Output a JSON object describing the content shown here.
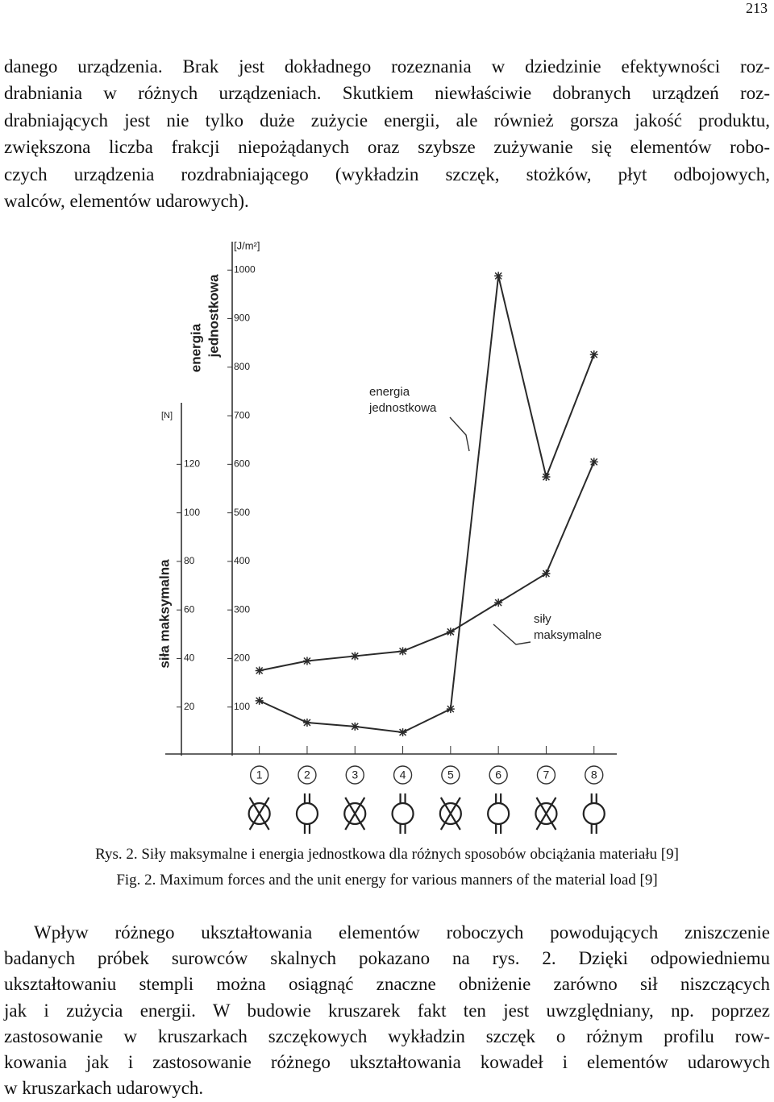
{
  "page_number": "213",
  "paragraph_1": [
    "danego urządzenia. Brak jest dokładnego rozeznania w dziedzinie efektywności roz-",
    "drabniania w różnych urządzeniach. Skutkiem niewłaściwie dobranych urządzeń roz-",
    "drabniających jest nie tylko duże zużycie energii, ale również gorsza jakość produktu,",
    "zwiększona liczba frakcji niepożądanych oraz szybsze zużywanie się elementów robo-",
    "czych urządzenia rozdrabniającego (wykładzin szczęk, stożków, płyt odbojowych,",
    "walców, elementów udarowych)."
  ],
  "chart_data": {
    "type": "line",
    "y_label": "siła maksymalna",
    "y_unit": "[N]",
    "y2_label": [
      "energia",
      "jednostkowa"
    ],
    "y2_unit": "[J/m²]",
    "categories": [
      "1",
      "2",
      "3",
      "4",
      "5",
      "6",
      "7",
      "8"
    ],
    "ylim": [
      0,
      220
    ],
    "yticks": [
      20,
      40,
      60,
      80,
      100,
      120
    ],
    "y2lim": [
      0,
      1100
    ],
    "y2ticks": [
      100,
      200,
      300,
      400,
      500,
      600,
      700,
      800,
      900,
      1000
    ],
    "series": [
      {
        "name": "siły maksymalne",
        "color": "#2a2a2a",
        "values": [
          35,
          39,
          41,
          43,
          51,
          63,
          75,
          121
        ]
      },
      {
        "name": "energia jednostkowa",
        "color": "#2a2a2a",
        "axis": "y2",
        "values": [
          113,
          68,
          60,
          48,
          96,
          988,
          574,
          826
        ]
      }
    ],
    "annotations": [
      [
        "energia",
        "jednostkowa"
      ],
      [
        "siły",
        "maksymalne"
      ]
    ]
  },
  "caption_pl": "Rys. 2. Siły maksymalne i energia jednostkowa dla różnych sposobów obciążania materiału [9]",
  "caption_en": "Fig. 2. Maximum forces and the unit energy for various manners of the material load [9]",
  "paragraph_2": [
    "Wpływ różnego ukształtowania elementów roboczych powodujących zniszczenie",
    "badanych próbek surowców skalnych pokazano na rys. 2. Dzięki odpowiedniemu",
    "ukształtowaniu stempli można osiągnąć znaczne obniżenie zarówno sił niszczących",
    "jak i zużycia energii. W budowie kruszarek fakt ten jest uwzględniany, np. poprzez",
    "zastosowanie w kruszarkach szczękowych wykładzin szczęk o różnym profilu row-",
    "kowania jak i zastosowanie różnego ukształtowania kowadeł i elementów udarowych",
    "w kruszarkach udarowych."
  ]
}
